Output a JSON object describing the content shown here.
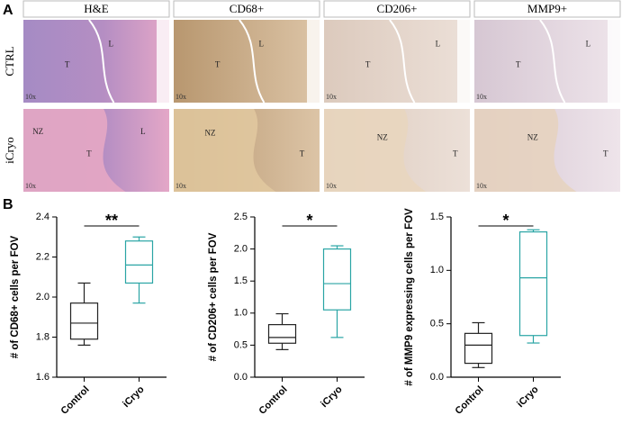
{
  "panel_labels": [
    "A",
    "B"
  ],
  "panel_a": {
    "columns": [
      "H&E",
      "CD68+",
      "CD206+",
      "MMP9+"
    ],
    "rows": [
      "CTRL",
      "iCryo"
    ],
    "images": [
      [
        {
          "labels": [
            "T",
            "L"
          ],
          "mag": "10x"
        },
        {
          "labels": [
            "T",
            "L"
          ],
          "mag": "10x"
        },
        {
          "labels": [
            "T",
            "L"
          ],
          "mag": "10x"
        },
        {
          "labels": [
            "T",
            "L"
          ],
          "mag": "10x"
        }
      ],
      [
        {
          "labels": [
            "NZ",
            "T",
            "L"
          ],
          "mag": "10x"
        },
        {
          "labels": [
            "NZ",
            "T"
          ],
          "mag": "10x"
        },
        {
          "labels": [
            "NZ",
            "T"
          ],
          "mag": "10x"
        },
        {
          "labels": [
            "NZ",
            "T"
          ],
          "mag": "10x"
        }
      ]
    ]
  },
  "chart_data": [
    {
      "type": "box",
      "ylabel": "# of CD68+ cells per FOV",
      "categories": [
        "Control",
        "iCryo"
      ],
      "colors": [
        "#222222",
        "#2aa5a5"
      ],
      "min": [
        1.76,
        1.97
      ],
      "q1": [
        1.79,
        2.07
      ],
      "median": [
        1.87,
        2.16
      ],
      "q3": [
        1.97,
        2.28
      ],
      "max": [
        2.07,
        2.3
      ],
      "annotation": "**",
      "ylim": [
        1.6,
        2.4
      ],
      "yticks": [
        1.6,
        1.8,
        {
          "value": 2,
          "label": "2.0"
        },
        2.2,
        2.4
      ]
    },
    {
      "type": "box",
      "ylabel": "# of CD206+ cells per FOV",
      "categories": [
        "Control",
        "iCryo"
      ],
      "colors": [
        "#222222",
        "#2aa5a5"
      ],
      "min": [
        0.43,
        0.62
      ],
      "q1": [
        0.53,
        1.05
      ],
      "median": [
        0.62,
        1.46
      ],
      "q3": [
        0.82,
        2.0
      ],
      "max": [
        0.99,
        2.05
      ],
      "annotation": "*",
      "ylim": [
        0,
        2.5
      ],
      "yticks": [
        {
          "value": 0,
          "label": "0.0"
        },
        0.5,
        {
          "value": 1,
          "label": "1.0"
        },
        1.5,
        {
          "value": 2,
          "label": "2.0"
        },
        2.5
      ]
    },
    {
      "type": "box",
      "ylabel": "# of MMP9 expressing cells per FOV",
      "categories": [
        "Control",
        "iCryo"
      ],
      "colors": [
        "#222222",
        "#2aa5a5"
      ],
      "min": [
        0.09,
        0.32
      ],
      "q1": [
        0.13,
        0.39
      ],
      "median": [
        0.3,
        0.93
      ],
      "q3": [
        0.41,
        1.36
      ],
      "max": [
        0.51,
        1.38
      ],
      "annotation": "*",
      "ylim": [
        0,
        1.5
      ],
      "yticks": [
        {
          "value": 0,
          "label": "0.0"
        },
        0.5,
        {
          "value": 1,
          "label": "1.0"
        },
        1.5
      ]
    }
  ]
}
